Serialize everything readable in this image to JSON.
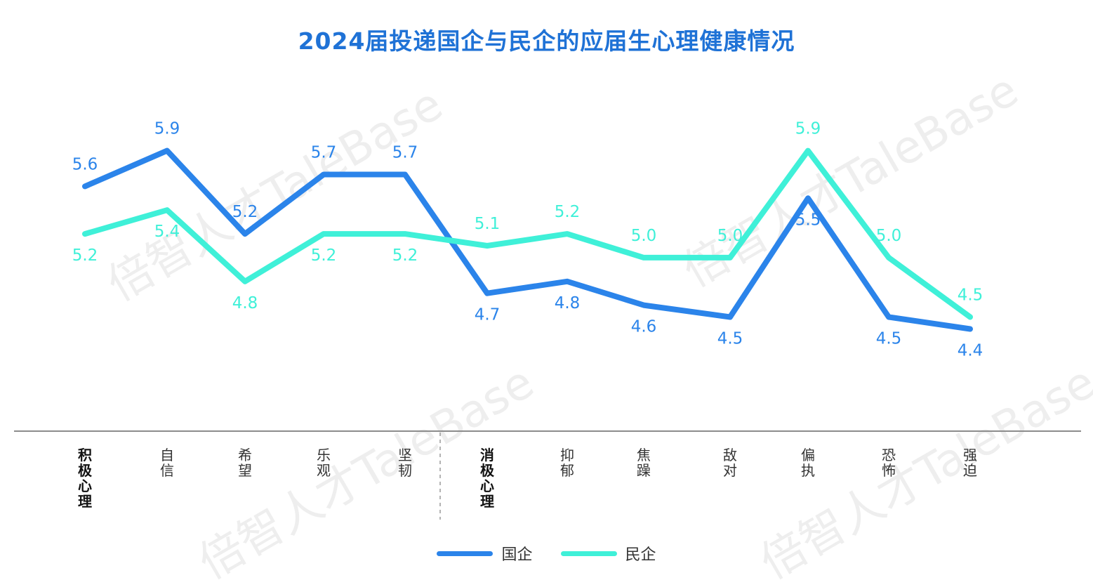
{
  "title": "2024届投递国企与民企的应届生心理健康情况",
  "watermark": "倍智人才TaleBase",
  "chart_data": {
    "type": "line",
    "categories": [
      "积极心理",
      "自信",
      "希望",
      "乐观",
      "坚韧",
      "消极心理",
      "抑郁",
      "焦躁",
      "敌对",
      "偏执",
      "恐怖",
      "强迫"
    ],
    "group_headers": [
      "积极心理",
      "消极心理"
    ],
    "series": [
      {
        "name": "国企",
        "color": "#2b84ea",
        "values": [
          5.6,
          5.9,
          5.2,
          5.7,
          5.7,
          4.7,
          4.8,
          4.6,
          4.5,
          5.5,
          4.5,
          4.4
        ]
      },
      {
        "name": "民企",
        "color": "#3ff0d8",
        "values": [
          5.2,
          5.4,
          4.8,
          5.2,
          5.2,
          5.1,
          5.2,
          5.0,
          5.0,
          5.9,
          5.0,
          4.5
        ]
      }
    ],
    "ylim": [
      3.8,
      6.4
    ],
    "grid": false,
    "legend_position": "bottom"
  }
}
